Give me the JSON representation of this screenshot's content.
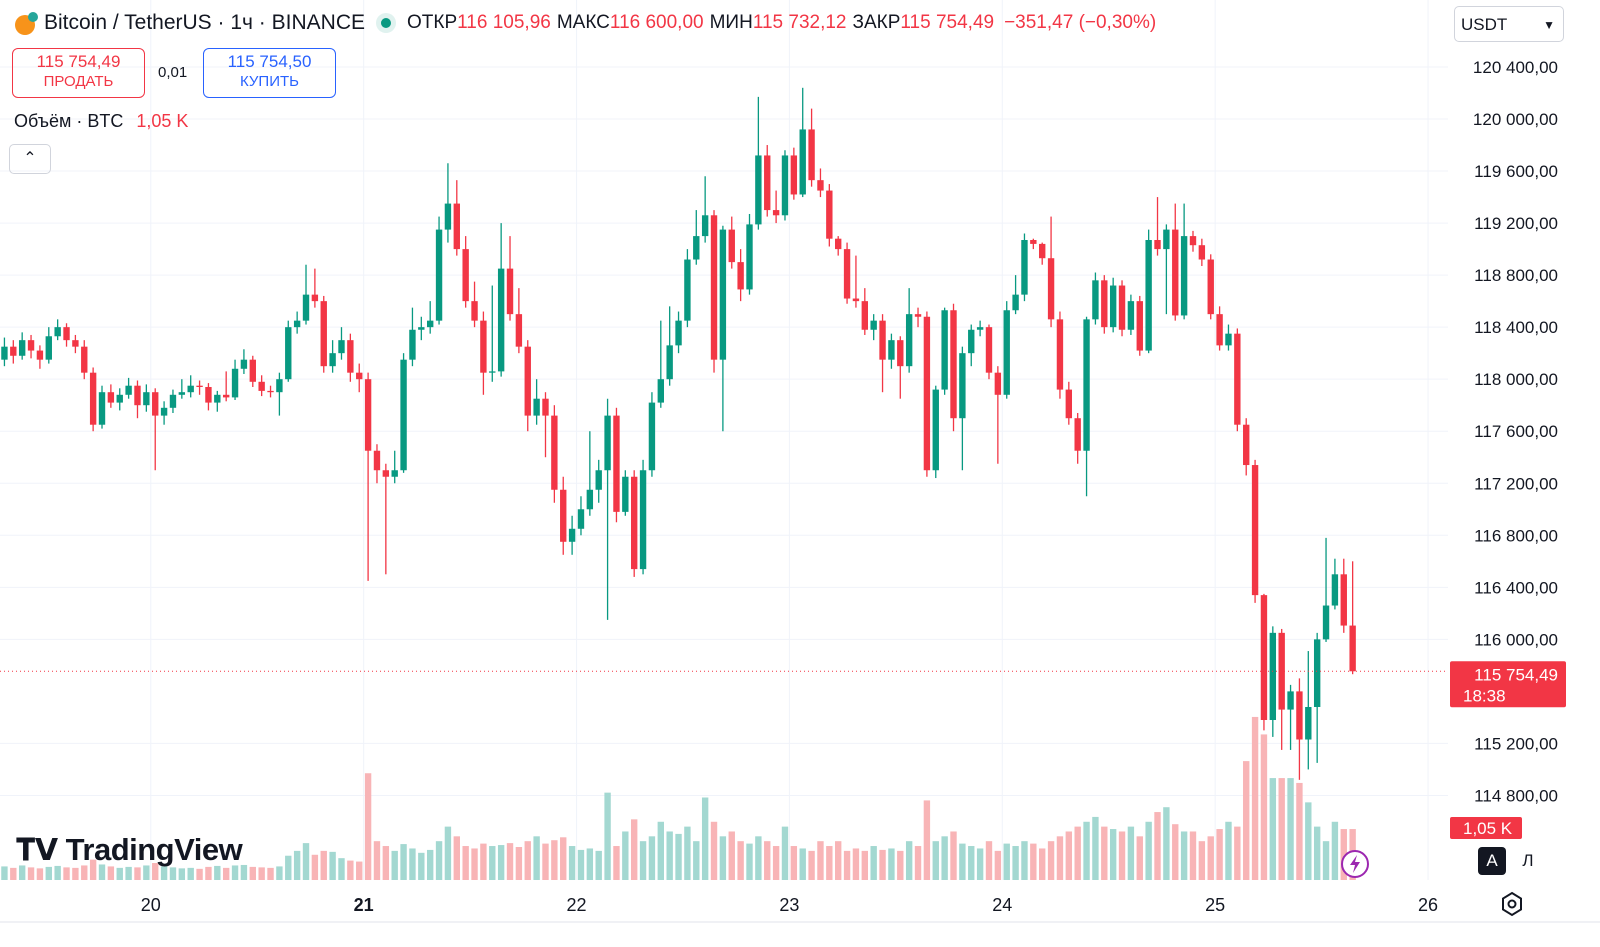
{
  "header": {
    "symbol": "Bitcoin / TetherUS · 1ч · BINANCE",
    "open_label": "ОТКР",
    "open": "116 105,96",
    "high_label": "МАКС",
    "high": "116 600,00",
    "low_label": "МИН",
    "low": "115 732,12",
    "close_label": "ЗАКР",
    "close": "115 754,49",
    "change": "−351,47 (−0,30%)",
    "sell_price": "115 754,49",
    "sell": "ПРОДАТЬ",
    "spread": "0,01",
    "buy_price": "115 754,50",
    "buy": "КУПИТЬ",
    "volume_title": "Объём · BTC",
    "volume_label": "1,05 K",
    "currency": "USDT",
    "countdown": "18:38",
    "brand": "TradingView",
    "btn_a": "A",
    "btn_l": "Л"
  },
  "chart_data": {
    "type": "candlestick",
    "up_color": "#089981",
    "down_color": "#f23645",
    "volume_up_color": "#a3d8d1",
    "volume_down_color": "#f8b4b6",
    "grid": true,
    "xlim": [
      0,
      163.25
    ],
    "xticks": [
      {
        "value": 17,
        "label": "20"
      },
      {
        "value": 41,
        "label": "21"
      },
      {
        "value": 65,
        "label": "22"
      },
      {
        "value": 89,
        "label": "23"
      },
      {
        "value": 113,
        "label": "24"
      },
      {
        "value": 137,
        "label": "25"
      },
      {
        "value": 161,
        "label": "26"
      }
    ],
    "ylim": [
      114150,
      120915
    ],
    "yticks": [
      {
        "value": 114800,
        "label": "114 800,00"
      },
      {
        "value": 115200,
        "label": "115 200,00"
      },
      {
        "value": 116000,
        "label": "116 000,00"
      },
      {
        "value": 116400,
        "label": "116 400,00"
      },
      {
        "value": 116800,
        "label": "116 800,00"
      },
      {
        "value": 117200,
        "label": "117 200,00"
      },
      {
        "value": 117600,
        "label": "117 600,00"
      },
      {
        "value": 118000,
        "label": "118 000,00"
      },
      {
        "value": 118400,
        "label": "118 400,00"
      },
      {
        "value": 118800,
        "label": "118 800,00"
      },
      {
        "value": 119200,
        "label": "119 200,00"
      },
      {
        "value": 119600,
        "label": "119 600,00"
      },
      {
        "value": 120000,
        "label": "120 000,00"
      },
      {
        "value": 120400,
        "label": "120 400,00"
      }
    ],
    "last_price": {
      "value": 115754.49,
      "label": "115 754,49"
    },
    "vlim": [
      0,
      3400
    ],
    "ohlc": [
      [
        118150,
        118320,
        118100,
        118250
      ],
      [
        118250,
        118300,
        118120,
        118180
      ],
      [
        118180,
        118360,
        118150,
        118300
      ],
      [
        118300,
        118340,
        118160,
        118220
      ],
      [
        118220,
        118260,
        118080,
        118150
      ],
      [
        118150,
        118400,
        118120,
        118330
      ],
      [
        118330,
        118460,
        118300,
        118400
      ],
      [
        118400,
        118430,
        118250,
        118300
      ],
      [
        118300,
        118340,
        118200,
        118250
      ],
      [
        118250,
        118300,
        118000,
        118050
      ],
      [
        118050,
        118090,
        117600,
        117650
      ],
      [
        117650,
        117950,
        117620,
        117900
      ],
      [
        117900,
        117960,
        117780,
        117820
      ],
      [
        117820,
        117930,
        117760,
        117880
      ],
      [
        117880,
        118010,
        117850,
        117950
      ],
      [
        117950,
        117990,
        117700,
        117800
      ],
      [
        117800,
        117960,
        117750,
        117900
      ],
      [
        117900,
        117930,
        117300,
        117720
      ],
      [
        117720,
        117830,
        117650,
        117780
      ],
      [
        117780,
        117920,
        117740,
        117880
      ],
      [
        117880,
        118000,
        117850,
        117900
      ],
      [
        117900,
        118030,
        117860,
        117950
      ],
      [
        117950,
        117990,
        117880,
        117940
      ],
      [
        117940,
        117970,
        117760,
        117820
      ],
      [
        117820,
        117910,
        117750,
        117880
      ],
      [
        117880,
        118060,
        117830,
        117860
      ],
      [
        117860,
        118150,
        117840,
        118080
      ],
      [
        118080,
        118230,
        118040,
        118150
      ],
      [
        118150,
        118180,
        117940,
        117980
      ],
      [
        117980,
        118030,
        117870,
        117910
      ],
      [
        117910,
        117950,
        117860,
        117900
      ],
      [
        117900,
        118050,
        117720,
        118000
      ],
      [
        118000,
        118450,
        117980,
        118400
      ],
      [
        118400,
        118520,
        118350,
        118450
      ],
      [
        118450,
        118880,
        118420,
        118650
      ],
      [
        118650,
        118850,
        118550,
        118600
      ],
      [
        118600,
        118640,
        118050,
        118100
      ],
      [
        118100,
        118300,
        118050,
        118200
      ],
      [
        118200,
        118400,
        118150,
        118300
      ],
      [
        118300,
        118350,
        117980,
        118050
      ],
      [
        118050,
        118120,
        117900,
        118000
      ],
      [
        118000,
        118050,
        116450,
        117450
      ],
      [
        117450,
        117500,
        117200,
        117300
      ],
      [
        117300,
        117350,
        116500,
        117250
      ],
      [
        117250,
        117450,
        117200,
        117300
      ],
      [
        117300,
        118200,
        117280,
        118150
      ],
      [
        118150,
        118550,
        118100,
        118380
      ],
      [
        118380,
        118480,
        118300,
        118400
      ],
      [
        118400,
        118600,
        118350,
        118450
      ],
      [
        118450,
        119250,
        118420,
        119150
      ],
      [
        119150,
        119660,
        119050,
        119350
      ],
      [
        119350,
        119530,
        118950,
        119000
      ],
      [
        119000,
        119100,
        118550,
        118600
      ],
      [
        118600,
        118750,
        118400,
        118450
      ],
      [
        118450,
        118520,
        117880,
        118050
      ],
      [
        118050,
        118720,
        117980,
        118060
      ],
      [
        118060,
        119200,
        118020,
        118850
      ],
      [
        118850,
        119100,
        118450,
        118500
      ],
      [
        118500,
        118700,
        118200,
        118250
      ],
      [
        118250,
        118300,
        117600,
        117720
      ],
      [
        117720,
        118000,
        117650,
        117850
      ],
      [
        117850,
        117900,
        117400,
        117720
      ],
      [
        117720,
        117800,
        117050,
        117150
      ],
      [
        117150,
        117250,
        116650,
        116750
      ],
      [
        116750,
        116950,
        116650,
        116850
      ],
      [
        116850,
        117100,
        116800,
        117000
      ],
      [
        117000,
        117600,
        116950,
        117150
      ],
      [
        117150,
        117380,
        117050,
        117300
      ],
      [
        117300,
        117850,
        116150,
        117720
      ],
      [
        117720,
        117780,
        116900,
        116980
      ],
      [
        116980,
        117300,
        116950,
        117250
      ],
      [
        117250,
        117300,
        116480,
        116540
      ],
      [
        116540,
        117380,
        116500,
        117300
      ],
      [
        117300,
        117900,
        117250,
        117820
      ],
      [
        117820,
        118450,
        117780,
        118000
      ],
      [
        118000,
        118560,
        117950,
        118260
      ],
      [
        118260,
        118520,
        118200,
        118450
      ],
      [
        118450,
        119000,
        118400,
        118920
      ],
      [
        118920,
        119300,
        118880,
        119100
      ],
      [
        119100,
        119560,
        119050,
        119260
      ],
      [
        119260,
        119300,
        118050,
        118150
      ],
      [
        118150,
        119180,
        117600,
        119150
      ],
      [
        119150,
        119250,
        118850,
        118900
      ],
      [
        118900,
        119000,
        118600,
        118690
      ],
      [
        118690,
        119270,
        118650,
        119190
      ],
      [
        119190,
        120170,
        119150,
        119720
      ],
      [
        119720,
        119800,
        119250,
        119300
      ],
      [
        119300,
        119450,
        119200,
        119260
      ],
      [
        119260,
        119760,
        119220,
        119720
      ],
      [
        119720,
        119780,
        119380,
        119420
      ],
      [
        119420,
        120240,
        119400,
        119920
      ],
      [
        119920,
        120080,
        119480,
        119530
      ],
      [
        119530,
        119620,
        119400,
        119450
      ],
      [
        119450,
        119500,
        119020,
        119080
      ],
      [
        119080,
        119100,
        118950,
        119000
      ],
      [
        119000,
        119050,
        118580,
        118620
      ],
      [
        118620,
        118950,
        118550,
        118600
      ],
      [
        118600,
        118700,
        118340,
        118380
      ],
      [
        118380,
        118500,
        118300,
        118450
      ],
      [
        118450,
        118500,
        117900,
        118150
      ],
      [
        118150,
        118350,
        118080,
        118300
      ],
      [
        118300,
        118330,
        117850,
        118100
      ],
      [
        118100,
        118700,
        118050,
        118500
      ],
      [
        118500,
        118550,
        118400,
        118480
      ],
      [
        118480,
        118520,
        117250,
        117300
      ],
      [
        117300,
        117950,
        117240,
        117920
      ],
      [
        117920,
        118550,
        117880,
        118530
      ],
      [
        118530,
        118580,
        117600,
        117700
      ],
      [
        117700,
        118250,
        117300,
        118200
      ],
      [
        118200,
        118420,
        118100,
        118380
      ],
      [
        118380,
        118450,
        118330,
        118400
      ],
      [
        118400,
        118420,
        118000,
        118050
      ],
      [
        118050,
        118100,
        117350,
        117880
      ],
      [
        117880,
        118600,
        117850,
        118530
      ],
      [
        118530,
        118800,
        118500,
        118650
      ],
      [
        118650,
        119120,
        118600,
        119070
      ],
      [
        119070,
        119080,
        119000,
        119040
      ],
      [
        119040,
        119050,
        118880,
        118930
      ],
      [
        118930,
        119250,
        118400,
        118460
      ],
      [
        118460,
        118520,
        117850,
        117920
      ],
      [
        117920,
        117980,
        117650,
        117700
      ],
      [
        117700,
        117740,
        117350,
        117450
      ],
      [
        117450,
        118480,
        117100,
        118460
      ],
      [
        118460,
        118820,
        118420,
        118760
      ],
      [
        118760,
        118800,
        118350,
        118400
      ],
      [
        118400,
        118780,
        118360,
        118720
      ],
      [
        118720,
        118760,
        118330,
        118380
      ],
      [
        118380,
        118650,
        118340,
        118600
      ],
      [
        118600,
        118640,
        118180,
        118220
      ],
      [
        118220,
        119150,
        118200,
        119070
      ],
      [
        119070,
        119400,
        118950,
        119000
      ],
      [
        119000,
        119190,
        118500,
        119150
      ],
      [
        119150,
        119350,
        118450,
        118490
      ],
      [
        118490,
        119350,
        118460,
        119100
      ],
      [
        119100,
        119140,
        118980,
        119030
      ],
      [
        119030,
        119080,
        118870,
        118920
      ],
      [
        118920,
        118960,
        118460,
        118500
      ],
      [
        118500,
        118560,
        118220,
        118260
      ],
      [
        118260,
        118420,
        118220,
        118350
      ],
      [
        118350,
        118390,
        117600,
        117650
      ],
      [
        117650,
        117700,
        117260,
        117340
      ],
      [
        117340,
        117380,
        116280,
        116340
      ],
      [
        116340,
        116350,
        115300,
        115380
      ],
      [
        115380,
        116100,
        115250,
        116050
      ],
      [
        116050,
        116080,
        115150,
        115460
      ],
      [
        115460,
        115650,
        115150,
        115600
      ],
      [
        115600,
        115700,
        114920,
        115230
      ],
      [
        115230,
        115910,
        115000,
        115480
      ],
      [
        115480,
        116050,
        115050,
        116000
      ],
      [
        116000,
        116780,
        115980,
        116260
      ],
      [
        116260,
        116620,
        116230,
        116500
      ],
      [
        116500,
        116620,
        116050,
        116105.96
      ],
      [
        116105.96,
        116600,
        115732.12,
        115754.49
      ]
    ],
    "volumes": [
      280,
      250,
      300,
      260,
      240,
      270,
      290,
      260,
      250,
      300,
      420,
      320,
      280,
      250,
      270,
      260,
      300,
      350,
      280,
      260,
      240,
      250,
      230,
      270,
      290,
      250,
      300,
      310,
      270,
      260,
      250,
      280,
      500,
      600,
      760,
      520,
      600,
      580,
      450,
      400,
      380,
      2200,
      800,
      700,
      600,
      740,
      650,
      560,
      620,
      800,
      1100,
      900,
      700,
      650,
      750,
      700,
      720,
      760,
      680,
      800,
      900,
      750,
      820,
      880,
      700,
      620,
      650,
      600,
      1800,
      700,
      1000,
      1250,
      800,
      900,
      1200,
      1000,
      950,
      1100,
      800,
      1700,
      1200,
      900,
      1000,
      800,
      750,
      900,
      800,
      700,
      1100,
      700,
      650,
      600,
      800,
      700,
      800,
      600,
      650,
      600,
      700,
      620,
      650,
      600,
      800,
      700,
      1640,
      800,
      900,
      1000,
      750,
      700,
      650,
      800,
      600,
      750,
      700,
      800,
      750,
      650,
      800,
      900,
      1000,
      1100,
      1200,
      1300,
      1100,
      1050,
      1000,
      1100,
      900,
      1200,
      1400,
      1500,
      1150,
      1000,
      1000,
      800,
      900,
      1050,
      1200,
      1100,
      2450,
      3360,
      3000,
      2100,
      2100,
      2100,
      2000,
      1600,
      1100,
      800,
      1200,
      1050,
      1050
    ]
  }
}
